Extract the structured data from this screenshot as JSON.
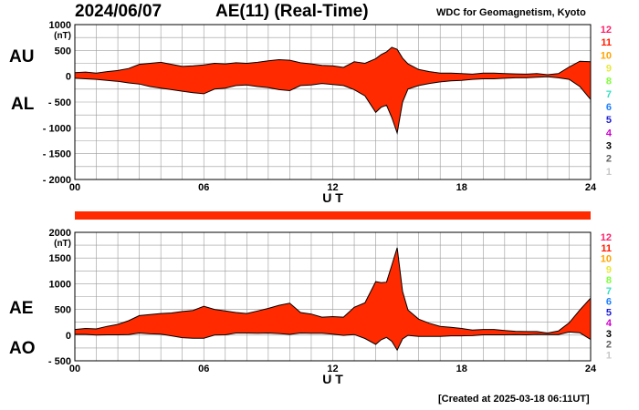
{
  "header": {
    "date": "2024/06/07",
    "title": "AE(11) (Real-Time)",
    "source": "WDC for Geomagnetism, Kyoto"
  },
  "footer": {
    "created": "[Created at 2025-03-18 06:11UT]"
  },
  "colors": {
    "fill": "#ff2a00",
    "line": "#000000",
    "grid": "#9a9a9a",
    "status_bar": "#ff2a00"
  },
  "station_count_scale": {
    "labels": [
      "12",
      "11",
      "10",
      "9",
      "8",
      "7",
      "6",
      "5",
      "4",
      "3",
      "2",
      "1"
    ],
    "colors": [
      "#ff1f6a",
      "#ff1a00",
      "#ffa500",
      "#e8e840",
      "#7fff3a",
      "#33e0c0",
      "#1f7fff",
      "#2020d0",
      "#d000d0",
      "#000000",
      "#606060",
      "#c8c8c8"
    ]
  },
  "chart_data": [
    {
      "type": "area",
      "panel": "AU/AL",
      "series_labels": [
        "AU",
        "AL"
      ],
      "unit_label": "(nT)",
      "xlabel": "U T",
      "xlim": [
        0,
        24
      ],
      "xticks": [
        "00",
        "06",
        "12",
        "18",
        "24"
      ],
      "ylim": [
        -2000,
        1000
      ],
      "yticks": [
        "1000",
        "500",
        "0",
        "- 500",
        "- 1000",
        "- 1500",
        "- 2000"
      ],
      "x": [
        0,
        0.5,
        1,
        1.5,
        2,
        2.5,
        3,
        3.5,
        4,
        4.5,
        5,
        5.5,
        6,
        6.5,
        7,
        7.5,
        8,
        8.5,
        9,
        9.5,
        10,
        10.5,
        11,
        11.5,
        12,
        12.5,
        13,
        13.5,
        14,
        14.25,
        14.5,
        14.75,
        15,
        15.25,
        15.5,
        16,
        16.5,
        17,
        17.5,
        18,
        18.5,
        19,
        19.5,
        20,
        20.5,
        21,
        21.5,
        22,
        22.5,
        23,
        23.5,
        24
      ],
      "upper": [
        70,
        80,
        60,
        90,
        110,
        150,
        230,
        250,
        270,
        230,
        190,
        200,
        220,
        250,
        240,
        260,
        250,
        270,
        300,
        320,
        310,
        260,
        240,
        210,
        200,
        170,
        280,
        250,
        340,
        420,
        470,
        560,
        520,
        350,
        240,
        130,
        90,
        60,
        60,
        50,
        40,
        60,
        60,
        50,
        45,
        40,
        50,
        30,
        50,
        180,
        290,
        280
      ],
      "lower": [
        -40,
        -50,
        -60,
        -80,
        -100,
        -130,
        -150,
        -200,
        -230,
        -260,
        -290,
        -320,
        -340,
        -250,
        -230,
        -180,
        -170,
        -200,
        -220,
        -260,
        -280,
        -180,
        -170,
        -140,
        -160,
        -180,
        -260,
        -380,
        -700,
        -600,
        -560,
        -800,
        -1100,
        -500,
        -250,
        -180,
        -140,
        -110,
        -90,
        -80,
        -60,
        -50,
        -50,
        -40,
        -30,
        -30,
        -20,
        -10,
        -30,
        -60,
        -200,
        -450
      ]
    },
    {
      "type": "area",
      "panel": "AE/AO",
      "series_labels": [
        "AE",
        "AO"
      ],
      "unit_label": "(nT)",
      "xlabel": "U T",
      "xlim": [
        0,
        24
      ],
      "xticks": [
        "00",
        "06",
        "12",
        "18",
        "24"
      ],
      "ylim": [
        -500,
        2000
      ],
      "yticks": [
        "2000",
        "1500",
        "1000",
        "500",
        "0",
        "- 500"
      ],
      "x": [
        0,
        0.5,
        1,
        1.5,
        2,
        2.5,
        3,
        3.5,
        4,
        4.5,
        5,
        5.5,
        6,
        6.5,
        7,
        7.5,
        8,
        8.5,
        9,
        9.5,
        10,
        10.5,
        11,
        11.5,
        12,
        12.5,
        13,
        13.5,
        14,
        14.25,
        14.5,
        14.75,
        15,
        15.25,
        15.5,
        16,
        16.5,
        17,
        17.5,
        18,
        18.5,
        19,
        19.5,
        20,
        20.5,
        21,
        21.5,
        22,
        22.5,
        23,
        23.5,
        24
      ],
      "upper": [
        110,
        130,
        120,
        170,
        210,
        280,
        380,
        400,
        420,
        430,
        460,
        480,
        560,
        500,
        470,
        440,
        420,
        470,
        520,
        580,
        620,
        440,
        410,
        350,
        360,
        350,
        540,
        630,
        1040,
        1020,
        1030,
        1360,
        1700,
        850,
        490,
        310,
        230,
        170,
        150,
        130,
        100,
        110,
        110,
        90,
        75,
        70,
        70,
        40,
        80,
        240,
        490,
        720
      ],
      "lower": [
        15,
        15,
        0,
        5,
        5,
        10,
        40,
        25,
        20,
        -15,
        -50,
        -60,
        -60,
        0,
        5,
        40,
        40,
        35,
        40,
        30,
        15,
        40,
        35,
        35,
        20,
        -5,
        10,
        -65,
        -180,
        -90,
        -45,
        -120,
        -290,
        -75,
        -5,
        -25,
        -25,
        -25,
        -15,
        -15,
        -10,
        5,
        5,
        5,
        8,
        5,
        15,
        10,
        10,
        60,
        45,
        -85
      ]
    }
  ]
}
